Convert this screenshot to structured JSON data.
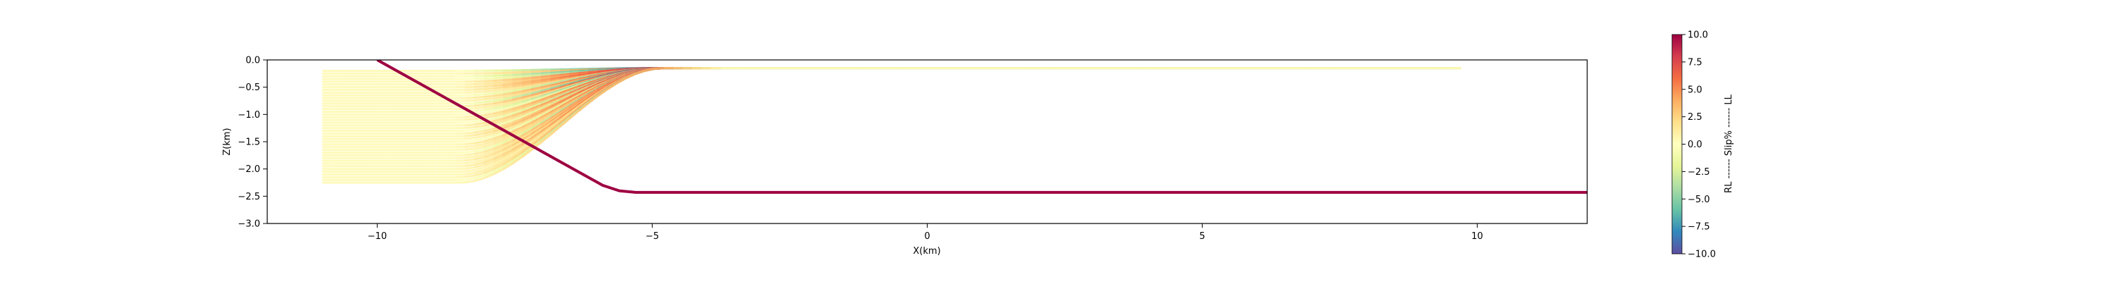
{
  "chart_data": {
    "type": "line",
    "title": "",
    "xlabel": "X(km)",
    "ylabel": "Z(km)",
    "xlim": [
      -12,
      12
    ],
    "ylim": [
      -3.0,
      0.0
    ],
    "x_ticks": [
      -10,
      -5,
      0,
      5,
      10
    ],
    "x_tick_labels": [
      "−10",
      "−5",
      "0",
      "5",
      "10"
    ],
    "y_ticks": [
      0.0,
      -0.5,
      -1.0,
      -1.5,
      -2.0,
      -2.5,
      -3.0
    ],
    "y_tick_labels": [
      "0.0",
      "−0.5",
      "−1.0",
      "−1.5",
      "−2.0",
      "−2.5",
      "−3.0"
    ],
    "grid": false,
    "colorbar": {
      "label": "RL ------ Slip% ------ LL",
      "range": [
        -10.0,
        10.0
      ],
      "colormap": "Spectral",
      "ticks": [
        10.0,
        7.5,
        5.0,
        2.5,
        0.0,
        -2.5,
        -5.0,
        -7.5,
        -10.0
      ],
      "tick_labels": [
        "10.0",
        "7.5",
        "5.0",
        "2.5",
        "0.0",
        "−2.5",
        "−5.0",
        "−7.5",
        "−10.0"
      ]
    },
    "base_fault": {
      "name": "",
      "color": "#9e0142",
      "x": [
        -10.0,
        -5.9,
        -5.6,
        -5.3,
        12.0
      ],
      "y": [
        0.0,
        -2.3,
        -2.4,
        -2.43,
        -2.43
      ]
    },
    "slip_layers": {
      "x_left": -11.0,
      "x_right": 9.7,
      "ramp_x_start": -8.5,
      "ramp_x_end": -4.8,
      "depths": [
        -0.2,
        -0.25,
        -0.3,
        -0.35,
        -0.4,
        -0.45,
        -0.5,
        -0.55,
        -0.6,
        -0.65,
        -0.7,
        -0.75,
        -0.8,
        -0.85,
        -0.9,
        -0.95,
        -1.0,
        -1.05,
        -1.1,
        -1.15,
        -1.2,
        -1.25,
        -1.3,
        -1.35,
        -1.4,
        -1.45,
        -1.5,
        -1.55,
        -1.6,
        -1.65,
        -1.7,
        -1.75,
        -1.8,
        -1.85,
        -1.9,
        -1.95,
        -2.0,
        -2.05,
        -2.1,
        -2.15,
        -2.2,
        -2.25
      ],
      "uplift": [
        0.05,
        0.1,
        0.15,
        0.2,
        0.25,
        0.3,
        0.35,
        0.4,
        0.45,
        0.5,
        0.55,
        0.6,
        0.65,
        0.7,
        0.75,
        0.8,
        0.85,
        0.9,
        0.95,
        1.0,
        1.05,
        1.1,
        1.15,
        1.2,
        1.25,
        1.3,
        1.35,
        1.4,
        1.45,
        1.5,
        1.55,
        1.6,
        1.65,
        1.7,
        1.75,
        1.8,
        1.85,
        1.9,
        1.95,
        2.0,
        2.05,
        2.1
      ],
      "slip_far": [
        0.5,
        0.8,
        -0.6,
        -4.0,
        1.5,
        0.4,
        9.5,
        3.5,
        0.6,
        -1.0,
        2.0,
        0.4,
        -10.0,
        9.8,
        0.5,
        -5.0,
        -0.5,
        4.0,
        0.8,
        -1.5,
        2.5,
        0.5,
        -0.8,
        1.2,
        3.0,
        0.4,
        -0.6,
        1.0,
        0.3,
        0.5,
        -2.0,
        0.8,
        0.4,
        1.5,
        0.5,
        6.0,
        0.6,
        -0.4,
        0.3,
        0.5,
        -3.5,
        0.4
      ],
      "slip_peak": [
        -9.0,
        6.0,
        -10.0,
        -7.0,
        9.5,
        8.0,
        10.0,
        8.5,
        5.0,
        -7.0,
        9.0,
        6.0,
        -10.0,
        10.0,
        5.0,
        -8.0,
        -4.0,
        9.0,
        7.0,
        -6.0,
        9.5,
        6.5,
        -5.0,
        8.0,
        9.5,
        5.0,
        -4.0,
        8.5,
        6.0,
        5.0,
        -7.0,
        8.0,
        5.5,
        8.5,
        4.5,
        9.0,
        6.0,
        3.0,
        5.0,
        7.0,
        -6.0,
        4.5
      ]
    }
  }
}
